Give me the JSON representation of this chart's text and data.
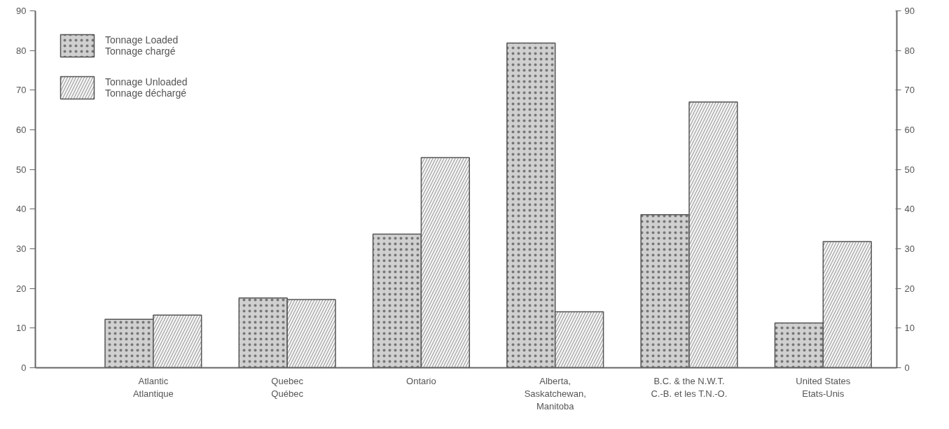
{
  "chart_data": {
    "type": "bar",
    "categories": [
      "Atlantic\nAtlantique",
      "Quebec\nQuébec",
      "Ontario",
      "Alberta,\nSaskatchewan,\nManitoba",
      "B.C. & the N.W.T.\nC.-B. et les T.N.-O.",
      "United States\nEtats-Unis"
    ],
    "series": [
      {
        "name": "Tonnage Loaded\nTonnage chargé",
        "color": "#d0d0d0",
        "values": [
          12.2,
          17.6,
          33.7,
          81.9,
          38.6,
          11.3
        ]
      },
      {
        "name": "Tonnage Unloaded\nTonnage déchargé",
        "color": "#f2f2f2",
        "values": [
          13.3,
          17.2,
          53.0,
          14.1,
          67.0,
          31.8
        ]
      }
    ],
    "ylim": [
      0,
      90
    ],
    "yticks": [
      0,
      10,
      20,
      30,
      40,
      50,
      60,
      70,
      80,
      90
    ],
    "y2lim": [
      0,
      90
    ],
    "y2ticks": [
      0,
      10,
      20,
      30,
      40,
      50,
      60,
      70,
      80,
      90
    ],
    "legend": "top left",
    "grid": false
  }
}
